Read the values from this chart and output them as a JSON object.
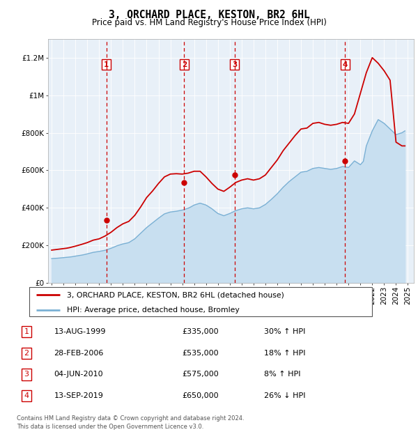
{
  "title": "3, ORCHARD PLACE, KESTON, BR2 6HL",
  "subtitle": "Price paid vs. HM Land Registry's House Price Index (HPI)",
  "legend_line1": "3, ORCHARD PLACE, KESTON, BR2 6HL (detached house)",
  "legend_line2": "HPI: Average price, detached house, Bromley",
  "footer1": "Contains HM Land Registry data © Crown copyright and database right 2024.",
  "footer2": "This data is licensed under the Open Government Licence v3.0.",
  "sales": [
    {
      "num": 1,
      "date_x": 1999.62,
      "price": 335000,
      "label": "13-AUG-1999",
      "pct": "30%",
      "dir": "↑"
    },
    {
      "num": 2,
      "date_x": 2006.16,
      "price": 535000,
      "label": "28-FEB-2006",
      "pct": "18%",
      "dir": "↑"
    },
    {
      "num": 3,
      "date_x": 2010.42,
      "price": 575000,
      "label": "04-JUN-2010",
      "pct": "8%",
      "dir": "↑"
    },
    {
      "num": 4,
      "date_x": 2019.7,
      "price": 650000,
      "label": "13-SEP-2019",
      "pct": "26%",
      "dir": "↓"
    }
  ],
  "red_line_color": "#cc0000",
  "blue_line_color": "#7ab0d4",
  "blue_fill_color": "#c8dff0",
  "marker_box_color": "#cc0000",
  "background_chart": "#e8f0f8",
  "ylim": [
    0,
    1300000
  ],
  "yticks": [
    0,
    200000,
    400000,
    600000,
    800000,
    1000000,
    1200000
  ],
  "ytick_labels": [
    "£0",
    "£200K",
    "£400K",
    "£600K",
    "£800K",
    "£1M",
    "£1.2M"
  ],
  "xlim_start": 1994.7,
  "xlim_end": 2025.5,
  "hpi_years": [
    1995.0,
    1995.25,
    1995.5,
    1995.75,
    1996.0,
    1996.25,
    1996.5,
    1996.75,
    1997.0,
    1997.25,
    1997.5,
    1997.75,
    1998.0,
    1998.25,
    1998.5,
    1998.75,
    1999.0,
    1999.25,
    1999.5,
    1999.75,
    2000.0,
    2000.25,
    2000.5,
    2000.75,
    2001.0,
    2001.25,
    2001.5,
    2001.75,
    2002.0,
    2002.25,
    2002.5,
    2002.75,
    2003.0,
    2003.25,
    2003.5,
    2003.75,
    2004.0,
    2004.25,
    2004.5,
    2004.75,
    2005.0,
    2005.25,
    2005.5,
    2005.75,
    2006.0,
    2006.25,
    2006.5,
    2006.75,
    2007.0,
    2007.25,
    2007.5,
    2007.75,
    2008.0,
    2008.25,
    2008.5,
    2008.75,
    2009.0,
    2009.25,
    2009.5,
    2009.75,
    2010.0,
    2010.25,
    2010.5,
    2010.75,
    2011.0,
    2011.25,
    2011.5,
    2011.75,
    2012.0,
    2012.25,
    2012.5,
    2012.75,
    2013.0,
    2013.25,
    2013.5,
    2013.75,
    2014.0,
    2014.25,
    2014.5,
    2014.75,
    2015.0,
    2015.25,
    2015.5,
    2015.75,
    2016.0,
    2016.25,
    2016.5,
    2016.75,
    2017.0,
    2017.25,
    2017.5,
    2017.75,
    2018.0,
    2018.25,
    2018.5,
    2018.75,
    2019.0,
    2019.25,
    2019.5,
    2019.75,
    2020.0,
    2020.25,
    2020.5,
    2020.75,
    2021.0,
    2021.25,
    2021.5,
    2021.75,
    2022.0,
    2022.25,
    2022.5,
    2022.75,
    2023.0,
    2023.25,
    2023.5,
    2023.75,
    2024.0,
    2024.25,
    2024.5,
    2024.75
  ],
  "hpi_values": [
    130000,
    131000,
    132000,
    133500,
    135000,
    136500,
    138000,
    140000,
    143000,
    145500,
    148000,
    151000,
    155000,
    159000,
    163000,
    165500,
    168000,
    171000,
    174000,
    179000,
    185000,
    191000,
    198000,
    203000,
    208000,
    211000,
    215000,
    225000,
    235000,
    250000,
    265000,
    280000,
    295000,
    307500,
    320000,
    332500,
    345000,
    356500,
    368000,
    373000,
    378000,
    380000,
    382000,
    385000,
    388000,
    393000,
    398000,
    406000,
    415000,
    420000,
    425000,
    420000,
    415000,
    405000,
    395000,
    382000,
    370000,
    364000,
    358000,
    364000,
    370000,
    377500,
    385000,
    390000,
    395000,
    397500,
    400000,
    397500,
    395000,
    397500,
    400000,
    409000,
    418000,
    431500,
    445000,
    460000,
    475000,
    492500,
    510000,
    525000,
    540000,
    552500,
    565000,
    577500,
    590000,
    592500,
    595000,
    602500,
    610000,
    612500,
    615000,
    612500,
    610000,
    607500,
    605000,
    607500,
    610000,
    615000,
    620000,
    617500,
    615000,
    632500,
    650000,
    640000,
    630000,
    647500,
    730000,
    770000,
    810000,
    840000,
    870000,
    860000,
    850000,
    835000,
    820000,
    805000,
    790000,
    795000,
    800000,
    810000
  ],
  "red_years": [
    1995.0,
    1995.25,
    1995.5,
    1995.75,
    1996.0,
    1996.25,
    1996.5,
    1996.75,
    1997.0,
    1997.25,
    1997.5,
    1997.75,
    1998.0,
    1998.25,
    1998.5,
    1998.75,
    1999.0,
    1999.25,
    1999.5,
    1999.75,
    2000.0,
    2000.25,
    2000.5,
    2000.75,
    2001.0,
    2001.25,
    2001.5,
    2001.75,
    2002.0,
    2002.25,
    2002.5,
    2002.75,
    2003.0,
    2003.25,
    2003.5,
    2003.75,
    2004.0,
    2004.25,
    2004.5,
    2004.75,
    2005.0,
    2005.25,
    2005.5,
    2005.75,
    2006.0,
    2006.25,
    2006.5,
    2006.75,
    2007.0,
    2007.25,
    2007.5,
    2007.75,
    2008.0,
    2008.25,
    2008.5,
    2008.75,
    2009.0,
    2009.25,
    2009.5,
    2009.75,
    2010.0,
    2010.25,
    2010.5,
    2010.75,
    2011.0,
    2011.25,
    2011.5,
    2011.75,
    2012.0,
    2012.25,
    2012.5,
    2012.75,
    2013.0,
    2013.25,
    2013.5,
    2013.75,
    2014.0,
    2014.25,
    2014.5,
    2014.75,
    2015.0,
    2015.25,
    2015.5,
    2015.75,
    2016.0,
    2016.25,
    2016.5,
    2016.75,
    2017.0,
    2017.25,
    2017.5,
    2017.75,
    2018.0,
    2018.25,
    2018.5,
    2018.75,
    2019.0,
    2019.25,
    2019.5,
    2019.75,
    2020.0,
    2020.25,
    2020.5,
    2020.75,
    2021.0,
    2021.25,
    2021.5,
    2021.75,
    2022.0,
    2022.25,
    2022.5,
    2022.75,
    2023.0,
    2023.25,
    2023.5,
    2023.75,
    2024.0,
    2024.25,
    2024.5,
    2024.75
  ],
  "red_values": [
    175000,
    177000,
    179000,
    181000,
    183000,
    185000,
    188000,
    192000,
    196000,
    200500,
    205000,
    210000,
    215000,
    221500,
    228000,
    231500,
    235000,
    242500,
    250000,
    260000,
    270000,
    282500,
    295000,
    305000,
    315000,
    321500,
    328000,
    344000,
    360000,
    382500,
    405000,
    430000,
    455000,
    472500,
    490000,
    510000,
    530000,
    547500,
    565000,
    572500,
    580000,
    581000,
    582000,
    581000,
    580000,
    582500,
    585000,
    590000,
    595000,
    595000,
    595000,
    580000,
    565000,
    547500,
    530000,
    515000,
    500000,
    494000,
    488000,
    499000,
    510000,
    522500,
    535000,
    541500,
    548000,
    551500,
    555000,
    551500,
    548000,
    551500,
    555000,
    565000,
    575000,
    595000,
    615000,
    635000,
    655000,
    680000,
    705000,
    725000,
    745000,
    765000,
    785000,
    802500,
    820000,
    822500,
    825000,
    837500,
    850000,
    852500,
    855000,
    850000,
    845000,
    842500,
    840000,
    842500,
    845000,
    850000,
    855000,
    852500,
    850000,
    875000,
    900000,
    955000,
    1010000,
    1065000,
    1120000,
    1160000,
    1200000,
    1185000,
    1170000,
    1150000,
    1130000,
    1105000,
    1080000,
    915000,
    750000,
    740000,
    730000,
    730000
  ]
}
